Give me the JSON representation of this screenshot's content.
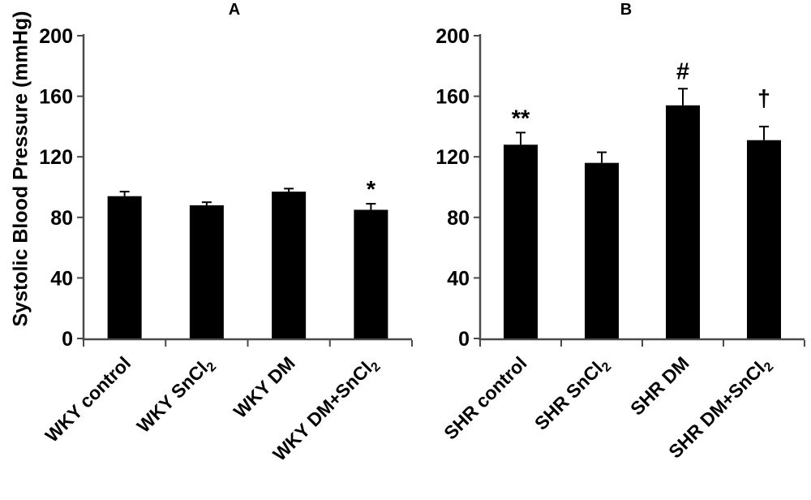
{
  "figure": {
    "ylabel": "Systolic Blood Pressure (mmHg)",
    "background": "#ffffff",
    "axis_color": "#4a4a4a",
    "text_color": "#000000"
  },
  "chart_data": [
    {
      "type": "bar",
      "panel_label": "A",
      "categories": [
        {
          "main": "WKY control",
          "sub": ""
        },
        {
          "main": "WKY SnCl",
          "sub": "2"
        },
        {
          "main": "WKY DM",
          "sub": ""
        },
        {
          "main": "WKY DM+SnCl",
          "sub": "2"
        }
      ],
      "values": [
        94,
        88,
        97,
        85
      ],
      "errors_plus": [
        3,
        2,
        2,
        4
      ],
      "annotations": [
        "",
        "",
        "",
        "*"
      ],
      "ylim": [
        0,
        200
      ],
      "yticks": [
        0,
        40,
        80,
        120,
        160,
        200
      ],
      "grid": false,
      "legend": "none",
      "bar_color": "#000000"
    },
    {
      "type": "bar",
      "panel_label": "B",
      "categories": [
        {
          "main": "SHR control",
          "sub": ""
        },
        {
          "main": "SHR SnCl",
          "sub": "2"
        },
        {
          "main": "SHR DM",
          "sub": ""
        },
        {
          "main": "SHR DM+SnCl",
          "sub": "2"
        }
      ],
      "values": [
        128,
        116,
        154,
        131
      ],
      "errors_plus": [
        8,
        7,
        11,
        9
      ],
      "annotations": [
        "**",
        "",
        "#",
        "†"
      ],
      "ylim": [
        0,
        200
      ],
      "yticks": [
        0,
        40,
        80,
        120,
        160,
        200
      ],
      "grid": false,
      "legend": "none",
      "bar_color": "#000000"
    }
  ]
}
